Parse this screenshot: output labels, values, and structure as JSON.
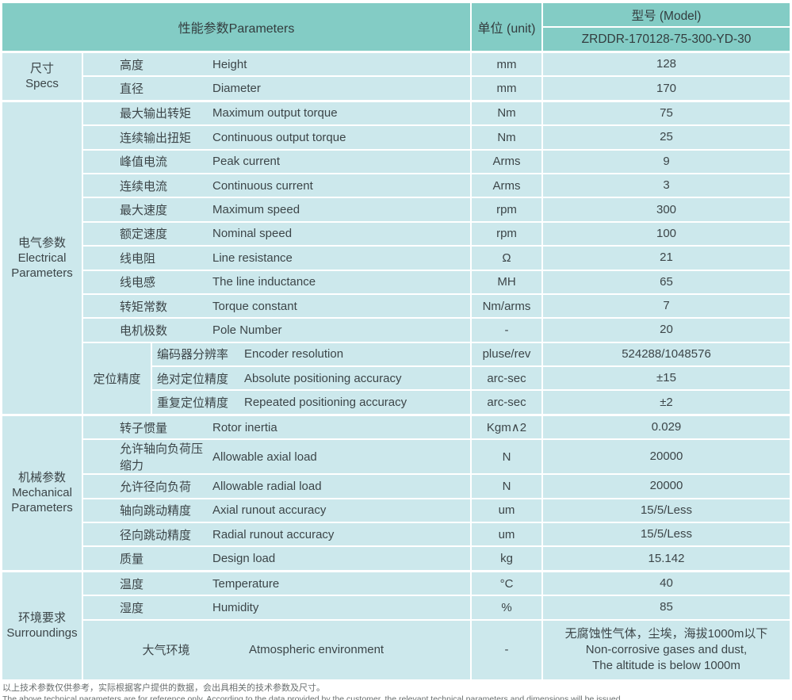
{
  "colors": {
    "header_teal": "#83ccc5",
    "row_blue": "#cce8ec",
    "text": "#3c4548",
    "header_text": "#333c3e",
    "footnote": "#6a6f6f"
  },
  "header": {
    "parameters_label": "性能参数Parameters",
    "unit_label": "单位 (unit)",
    "model_label": "型号 (Model)",
    "model_value": "ZRDDR-170128-75-300-YD-30"
  },
  "groups": [
    {
      "id": "specs",
      "label_lines": [
        "尺寸",
        "Specs"
      ],
      "rows": [
        {
          "cn": "高度",
          "en": "Height",
          "unit": "mm",
          "value": "128"
        },
        {
          "cn": "直径",
          "en": "Diameter",
          "unit": "mm",
          "value": "170"
        }
      ]
    },
    {
      "id": "electrical-parameters",
      "label_lines": [
        "电气参数",
        "Electrical",
        "Parameters"
      ],
      "rows": [
        {
          "cn": "最大输出转矩",
          "en": "Maximum output torque",
          "unit": "Nm",
          "value": "75"
        },
        {
          "cn": "连续输出扭矩",
          "en": "Continuous output torque",
          "unit": "Nm",
          "value": "25"
        },
        {
          "cn": "峰值电流",
          "en": "Peak current",
          "unit": "Arms",
          "value": "9"
        },
        {
          "cn": "连续电流",
          "en": "Continuous current",
          "unit": "Arms",
          "value": "3"
        },
        {
          "cn": "最大速度",
          "en": "Maximum speed",
          "unit": "rpm",
          "value": "300"
        },
        {
          "cn": "额定速度",
          "en": "Nominal speed",
          "unit": "rpm",
          "value": "100"
        },
        {
          "cn": "线电阻",
          "en": "Line resistance",
          "unit": "Ω",
          "value": "21"
        },
        {
          "cn": "线电感",
          "en": "The line inductance",
          "unit": "MH",
          "value": "65"
        },
        {
          "cn": "转矩常数",
          "en": "Torque constant",
          "unit": "Nm/arms",
          "value": "7"
        },
        {
          "cn": "电机极数",
          "en": "Pole Number",
          "unit": "-",
          "value": "20"
        }
      ],
      "subgroup": {
        "label": "定位精度",
        "rows": [
          {
            "cn": "编码器分辨率",
            "en": "Encoder resolution",
            "unit": "pluse/rev",
            "value": "524288/1048576"
          },
          {
            "cn": "绝对定位精度",
            "en": "Absolute positioning accuracy",
            "unit": "arc-sec",
            "value": "±15"
          },
          {
            "cn": "重复定位精度",
            "en": "Repeated positioning accuracy",
            "unit": "arc-sec",
            "value": "±2"
          }
        ]
      }
    },
    {
      "id": "mechanical-parameters",
      "label_lines": [
        "机械参数",
        "Mechanical",
        "Parameters"
      ],
      "rows": [
        {
          "cn": "转子惯量",
          "en": "Rotor inertia",
          "unit": "Kgm∧2",
          "value": "0.029"
        },
        {
          "cn": "允许轴向负荷压缩力",
          "en": "Allowable axial load",
          "unit": "N",
          "value": "20000"
        },
        {
          "cn": "允许径向负荷",
          "en": "Allowable radial load",
          "unit": "N",
          "value": "20000"
        },
        {
          "cn": "轴向跳动精度",
          "en": "Axial runout accuracy",
          "unit": "um",
          "value": "15/5/Less"
        },
        {
          "cn": "径向跳动精度",
          "en": "Radial runout accuracy",
          "unit": "um",
          "value": "15/5/Less"
        },
        {
          "cn": "质量",
          "en": "Design load",
          "unit": "kg",
          "value": "15.142"
        }
      ]
    },
    {
      "id": "surroundings",
      "label_lines": [
        "环境要求",
        "Surroundings"
      ],
      "rows": [
        {
          "cn": "温度",
          "en": "Temperature",
          "unit": "°C",
          "value": "40"
        },
        {
          "cn": "湿度",
          "en": "Humidity",
          "unit": "%",
          "value": "85"
        },
        {
          "cn": "大气环境",
          "en": "Atmospheric environment",
          "unit": "-",
          "center_cn": true,
          "value_lines": [
            "无腐蚀性气体，尘埃，海拔1000m以下",
            "Non-corrosive gases and dust,",
            "The altitude is below 1000m"
          ]
        }
      ]
    }
  ],
  "footnote": {
    "cn": "以上技术参数仅供参考，实际根据客户提供的数据，会出具相关的技术参数及尺寸。",
    "en": "The above technical parameters are for reference only. According to the data provided by the customer, the relevant technical parameters and dimensions will be issued."
  }
}
